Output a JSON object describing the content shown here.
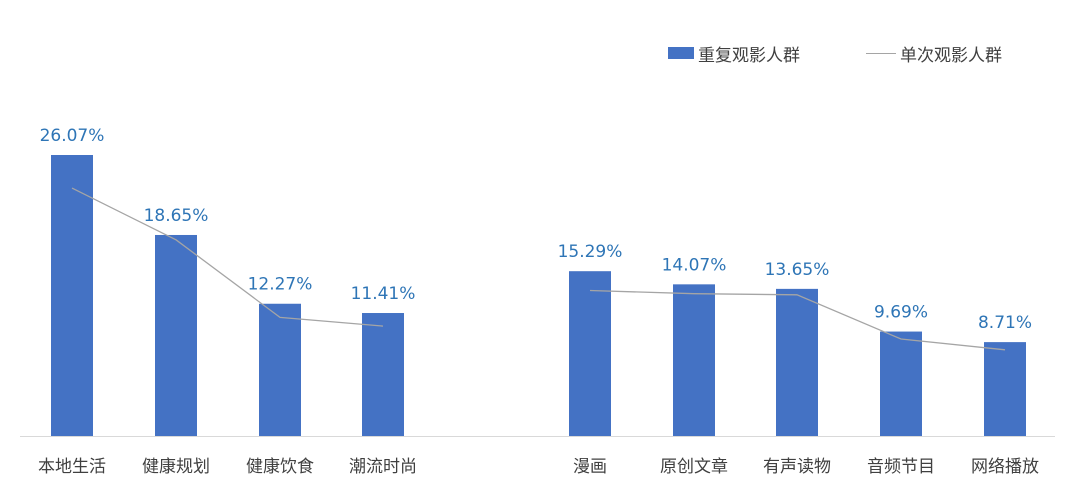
{
  "chart_data": {
    "type": "bar",
    "categories": [
      "本地生活",
      "健康规划",
      "健康饮食",
      "潮流时尚",
      "",
      "漫画",
      "原创文章",
      "有声读物",
      "音频节目",
      "网络播放"
    ],
    "series": [
      {
        "name": "重复观影人群",
        "type": "bar",
        "values": [
          26.07,
          18.65,
          12.27,
          11.41,
          null,
          15.29,
          14.07,
          13.65,
          9.69,
          8.71
        ],
        "labels": [
          "26.07%",
          "18.65%",
          "12.27%",
          "11.41%",
          "",
          "15.29%",
          "14.07%",
          "13.65%",
          "9.69%",
          "8.71%"
        ]
      },
      {
        "name": "单次观影人群",
        "type": "line",
        "values": [
          23.0,
          18.2,
          11.0,
          10.2,
          null,
          13.5,
          13.2,
          13.1,
          9.0,
          8.0
        ]
      }
    ],
    "ylim": [
      0,
      28
    ],
    "grid": false,
    "legend": "top-right",
    "colors": {
      "bar": "#4472C4",
      "line": "#A5A5A5",
      "label": "#2E75B6",
      "axis": "#D9D9D9",
      "text": "#404040"
    }
  }
}
